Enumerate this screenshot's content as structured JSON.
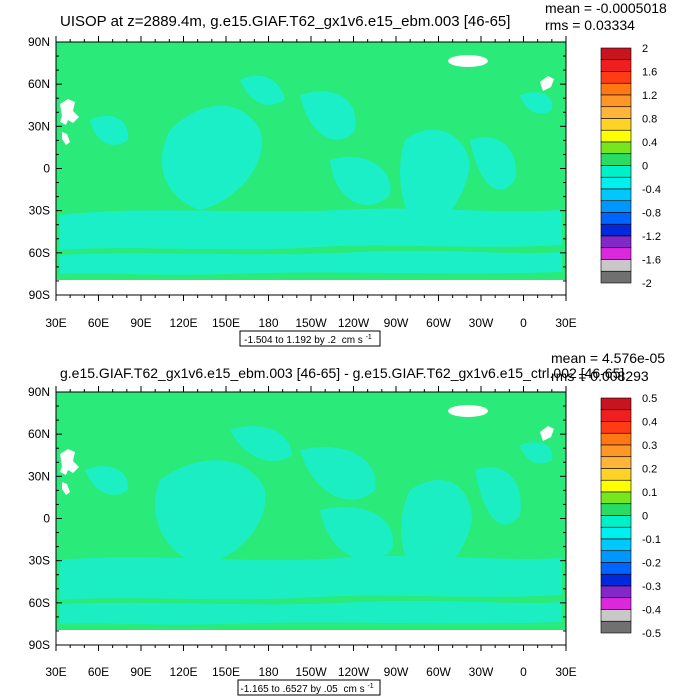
{
  "chart_data": [
    {
      "type": "heatmap",
      "title": "UISOP at z=2889.4m, g.e15.GIAF.T62_gx1v6.e15_ebm.003 [46-65]",
      "stats": {
        "mean": "mean = -0.0005018",
        "rms": "rms = 0.03334"
      },
      "range_label": "-1.504 to 1.192 by .2",
      "units": "cm s",
      "units_exp": "-1",
      "xticks": [
        "30E",
        "60E",
        "90E",
        "120E",
        "150E",
        "180",
        "150W",
        "120W",
        "90W",
        "60W",
        "30W",
        "0",
        "30E"
      ],
      "yticks": [
        "90N",
        "60N",
        "30N",
        "0",
        "30S",
        "60S",
        "90S"
      ],
      "xlim": [
        30,
        390
      ],
      "ylim": [
        -90,
        90
      ],
      "colorbar": {
        "labels": [
          "2",
          "1.6",
          "1.2",
          "0.8",
          "0.4",
          "0",
          "-0.4",
          "-0.8",
          "-1.2",
          "-1.6",
          "-2"
        ],
        "colors": [
          "#c8141e",
          "#f01e1e",
          "#ff3c14",
          "#ff7814",
          "#ff9628",
          "#ffb43c",
          "#ffd228",
          "#ffff00",
          "#78e61e",
          "#28dc64",
          "#00f0c8",
          "#00f0f0",
          "#00c8ff",
          "#0096ff",
          "#0064ff",
          "#0028dc",
          "#8228c8",
          "#dc28dc",
          "#c8c8c8",
          "#707070"
        ]
      }
    },
    {
      "type": "heatmap",
      "title": "g.e15.GIAF.T62_gx1v6.e15_ebm.003 [46-65] - g.e15.GIAF.T62_gx1v6.e15_ctrl.002 [46-65]",
      "stats": {
        "mean": "mean = 4.576e-05",
        "rms": "rms = 0.008293"
      },
      "range_label": "-1.165 to .6527 by .05",
      "units": "cm s",
      "units_exp": "-1",
      "xticks": [
        "30E",
        "60E",
        "90E",
        "120E",
        "150E",
        "180",
        "150W",
        "120W",
        "90W",
        "60W",
        "30W",
        "0",
        "30E"
      ],
      "yticks": [
        "90N",
        "60N",
        "30N",
        "0",
        "30S",
        "60S",
        "90S"
      ],
      "xlim": [
        30,
        390
      ],
      "ylim": [
        -90,
        90
      ],
      "colorbar": {
        "labels": [
          "0.5",
          "0.4",
          "0.3",
          "0.2",
          "0.1",
          "0",
          "-0.1",
          "-0.2",
          "-0.3",
          "-0.4",
          "-0.5"
        ],
        "colors": [
          "#c8141e",
          "#f01e1e",
          "#ff3c14",
          "#ff7814",
          "#ff9628",
          "#ffb43c",
          "#ffd228",
          "#ffff00",
          "#78e61e",
          "#28dc64",
          "#00f0c8",
          "#00f0f0",
          "#00c8ff",
          "#0096ff",
          "#0064ff",
          "#0028dc",
          "#8228c8",
          "#dc28dc",
          "#c8c8c8",
          "#707070"
        ]
      }
    }
  ],
  "palette": {
    "background_field": "#2aea7a",
    "anomaly_field": "#19f0d6",
    "missing": "#ffffff",
    "frame": "#000000"
  }
}
